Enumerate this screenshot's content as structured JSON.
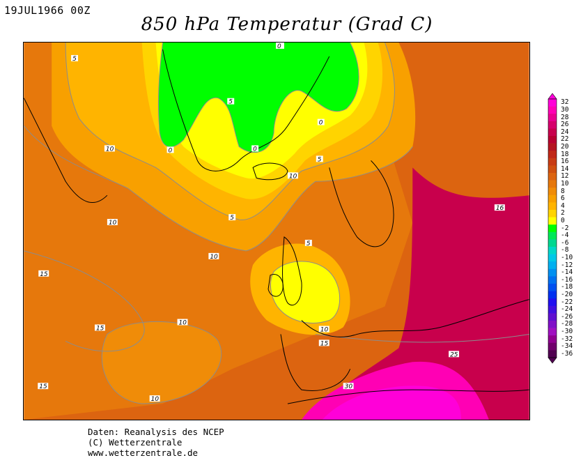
{
  "header": {
    "date": "19JUL1966 00Z",
    "title": "850 hPa Temperatur (Grad C)"
  },
  "credits": {
    "line1": "Daten: Reanalysis des NCEP",
    "line2": "(C) Wetterzentrale",
    "line3": "www.wetterzentrale.de"
  },
  "legend": {
    "levels": [
      "32",
      "30",
      "28",
      "26",
      "24",
      "22",
      "20",
      "18",
      "16",
      "14",
      "12",
      "10",
      "8",
      "6",
      "4",
      "2",
      "0",
      "-2",
      "-4",
      "-6",
      "-8",
      "-10",
      "-12",
      "-14",
      "-16",
      "-18",
      "-20",
      "-22",
      "-24",
      "-26",
      "-28",
      "-30",
      "-32",
      "-34",
      "-36"
    ],
    "colors": [
      "#ff00d8",
      "#ff00b4",
      "#ea0090",
      "#d6006c",
      "#c8004c",
      "#b80030",
      "#b41420",
      "#c02818",
      "#c83c14",
      "#d05010",
      "#dc6410",
      "#e6780c",
      "#f08c08",
      "#f8a000",
      "#ffb400",
      "#ffd400",
      "#ffff00",
      "#00ff00",
      "#00e858",
      "#00d890",
      "#00d8c8",
      "#00c8e8",
      "#00b0f0",
      "#0090f0",
      "#0070f0",
      "#0050f0",
      "#0030f0",
      "#2010f0",
      "#4010e0",
      "#6010d0",
      "#8010c8",
      "#a010c0",
      "#900090",
      "#70006c",
      "#500050"
    ]
  },
  "contour_labels": [
    "0",
    "0",
    "0",
    "0",
    "5",
    "5",
    "5",
    "5",
    "5",
    "10",
    "10",
    "10",
    "10",
    "10",
    "10",
    "10",
    "15",
    "15",
    "15",
    "15",
    "16",
    "25",
    "30"
  ]
}
